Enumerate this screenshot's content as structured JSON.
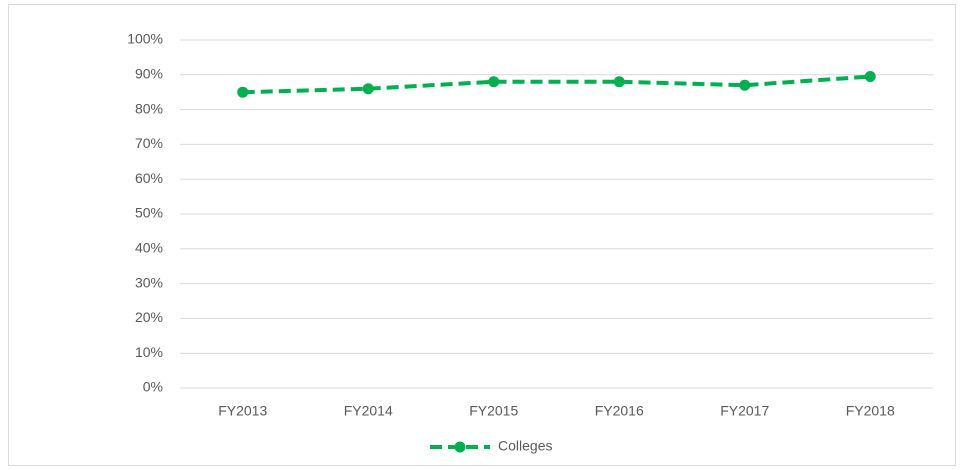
{
  "chart_data": {
    "type": "line",
    "categories": [
      "FY2013",
      "FY2014",
      "FY2015",
      "FY2016",
      "FY2017",
      "FY2018"
    ],
    "series": [
      {
        "name": "Colleges",
        "color": "#00b050",
        "values": [
          85,
          86,
          88,
          88,
          87,
          89.5
        ]
      }
    ],
    "ylim": [
      0,
      100
    ],
    "yticks": [
      {
        "value": 0,
        "label": "0%"
      },
      {
        "value": 10,
        "label": "10%"
      },
      {
        "value": 20,
        "label": "20%"
      },
      {
        "value": 30,
        "label": "30%"
      },
      {
        "value": 40,
        "label": "40%"
      },
      {
        "value": 50,
        "label": "50%"
      },
      {
        "value": 60,
        "label": "60%"
      },
      {
        "value": 70,
        "label": "70%"
      },
      {
        "value": 80,
        "label": "80%"
      },
      {
        "value": 90,
        "label": "90%"
      },
      {
        "value": 100,
        "label": "100%"
      }
    ],
    "grid": true,
    "legend": "bottom"
  }
}
